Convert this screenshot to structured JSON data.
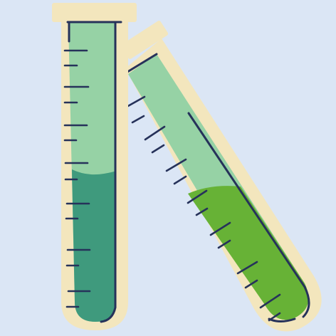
{
  "scene": {
    "colors": {
      "background": "#dbe6f5",
      "glass_rim": "#f3e6bd",
      "outline": "#26325a",
      "liquid_light_green": "#96d2a5",
      "liquid_teal": "#3f9a7d",
      "liquid_lime": "#67b236"
    },
    "upright_tube": {
      "icon": "test-tube-icon",
      "fill_level": 0.6,
      "tick_marks": 14
    },
    "tilted_tube": {
      "icon": "test-tube-icon",
      "fill_level": 0.55,
      "tick_marks": 14
    }
  }
}
